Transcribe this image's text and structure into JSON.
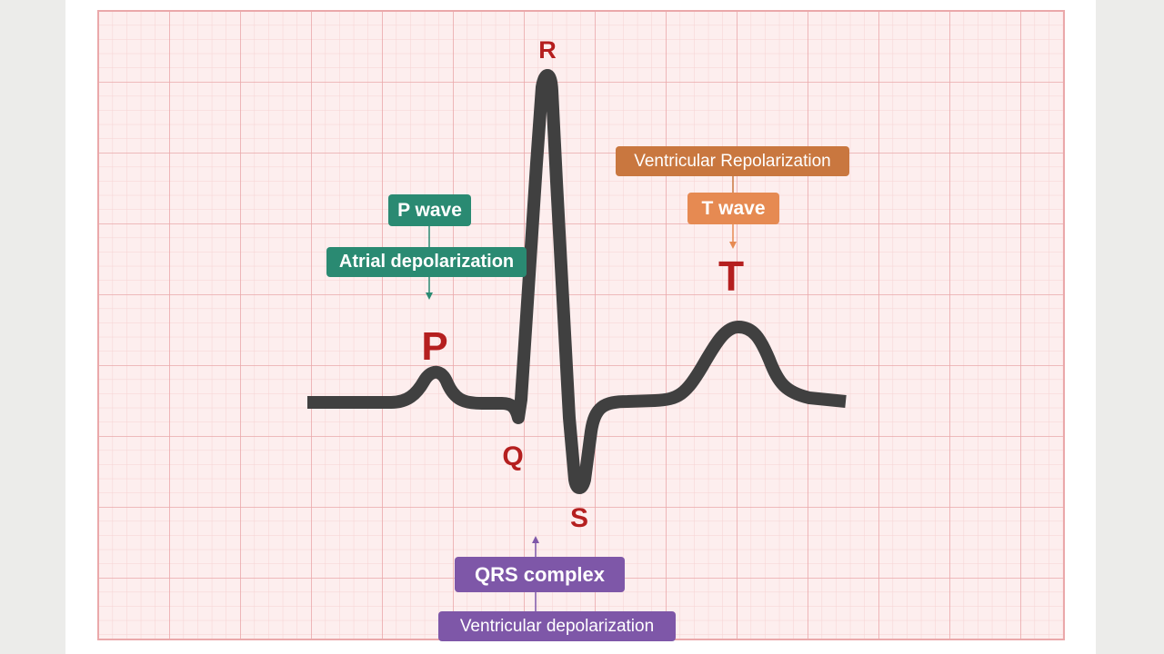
{
  "labels": {
    "r": "R",
    "q": "Q",
    "s": "S",
    "p": "P",
    "t": "T"
  },
  "p_wave": {
    "title": "P wave",
    "description": "Atrial depolarization"
  },
  "t_wave": {
    "title": "T wave",
    "description": "Ventricular Repolarization"
  },
  "qrs": {
    "title": "QRS complex",
    "description": "Ventricular depolarization"
  },
  "colors": {
    "page_background": "#ececea",
    "paper": "#ffffff",
    "grid_fill": "#fdeeee",
    "grid_minor": "#f6d2d2",
    "grid_major": "#eaa8aa",
    "trace": "#404040",
    "wave_letters": "#b51f1f",
    "p_wave_tag": "#2a8a72",
    "t_wave_tag": "#e68a52",
    "t_wave_description_tag": "#c9773f",
    "qrs_tag": "#7e57a8"
  }
}
